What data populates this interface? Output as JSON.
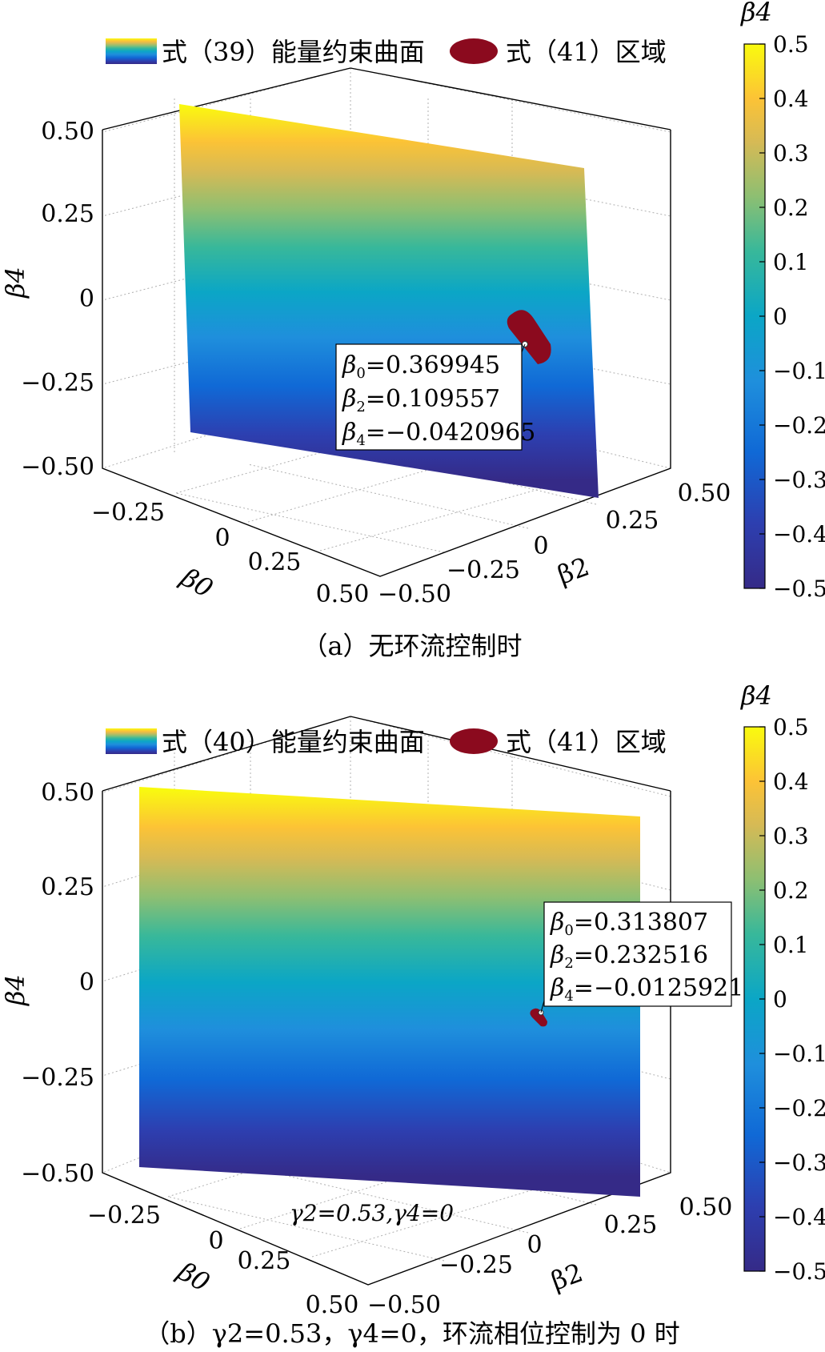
{
  "chart_data": [
    {
      "type": "surface3d",
      "caption": "（a）无环流控制时",
      "legend": {
        "surface": "式（39）能量约束曲面",
        "region": "式（41）区域"
      },
      "axes": {
        "x": {
          "label": "β0",
          "ticks": [
            "−0.25",
            "0",
            "0.25",
            "0.50"
          ],
          "range": [
            -0.5,
            0.5
          ]
        },
        "y": {
          "label": "β2",
          "ticks": [
            "−0.50",
            "−0.25",
            "0",
            "0.25",
            "0.50"
          ],
          "range": [
            -0.5,
            0.5
          ]
        },
        "z": {
          "label": "β4",
          "ticks": [
            "0.50",
            "0.25",
            "0",
            "−0.25",
            "−0.50"
          ],
          "range": [
            -0.5,
            0.5
          ]
        }
      },
      "colorbar": {
        "label": "β4",
        "ticks": [
          "0.5",
          "0.4",
          "0.3",
          "0.2",
          "0.1",
          "0",
          "−0.1",
          "−0.2",
          "−0.3",
          "−0.4",
          "−0.5"
        ],
        "range": [
          -0.5,
          0.5
        ]
      },
      "datatip": {
        "beta0": "0.369945",
        "beta2": "0.109557",
        "beta4": "−0.0420965"
      },
      "annotation": ""
    },
    {
      "type": "surface3d",
      "caption": "（b）γ2=0.53，γ4=0，环流相位控制为 0 时",
      "legend": {
        "surface": "式（40）能量约束曲面",
        "region": "式（41）区域"
      },
      "axes": {
        "x": {
          "label": "β0",
          "ticks": [
            "−0.25",
            "0",
            "0.25",
            "0.50"
          ],
          "range": [
            -0.5,
            0.5
          ]
        },
        "y": {
          "label": "β2",
          "ticks": [
            "−0.50",
            "−0.25",
            "0",
            "0.25",
            "0.50"
          ],
          "range": [
            -0.5,
            0.5
          ]
        },
        "z": {
          "label": "β4",
          "ticks": [
            "0.50",
            "0.25",
            "0",
            "−0.25",
            "−0.50"
          ],
          "range": [
            -0.5,
            0.5
          ]
        }
      },
      "colorbar": {
        "label": "β4",
        "ticks": [
          "0.5",
          "0.4",
          "0.3",
          "0.2",
          "0.1",
          "0",
          "−0.1",
          "−0.2",
          "−0.3",
          "−0.4",
          "−0.5"
        ],
        "range": [
          -0.5,
          0.5
        ]
      },
      "datatip": {
        "beta0": "0.313807",
        "beta2": "0.232516",
        "beta4": "−0.0125921"
      },
      "annotation": "γ2=0.53,γ4=0"
    }
  ],
  "colors": {
    "parula": [
      "#352a87",
      "#0f5cdd",
      "#1481d6",
      "#06a4ca",
      "#2eb7a4",
      "#87bf77",
      "#d1bb59",
      "#fec832",
      "#f9fb0e"
    ],
    "region": "#8b0a1e",
    "axis": "#000000",
    "grid": "#b0b0b0"
  }
}
